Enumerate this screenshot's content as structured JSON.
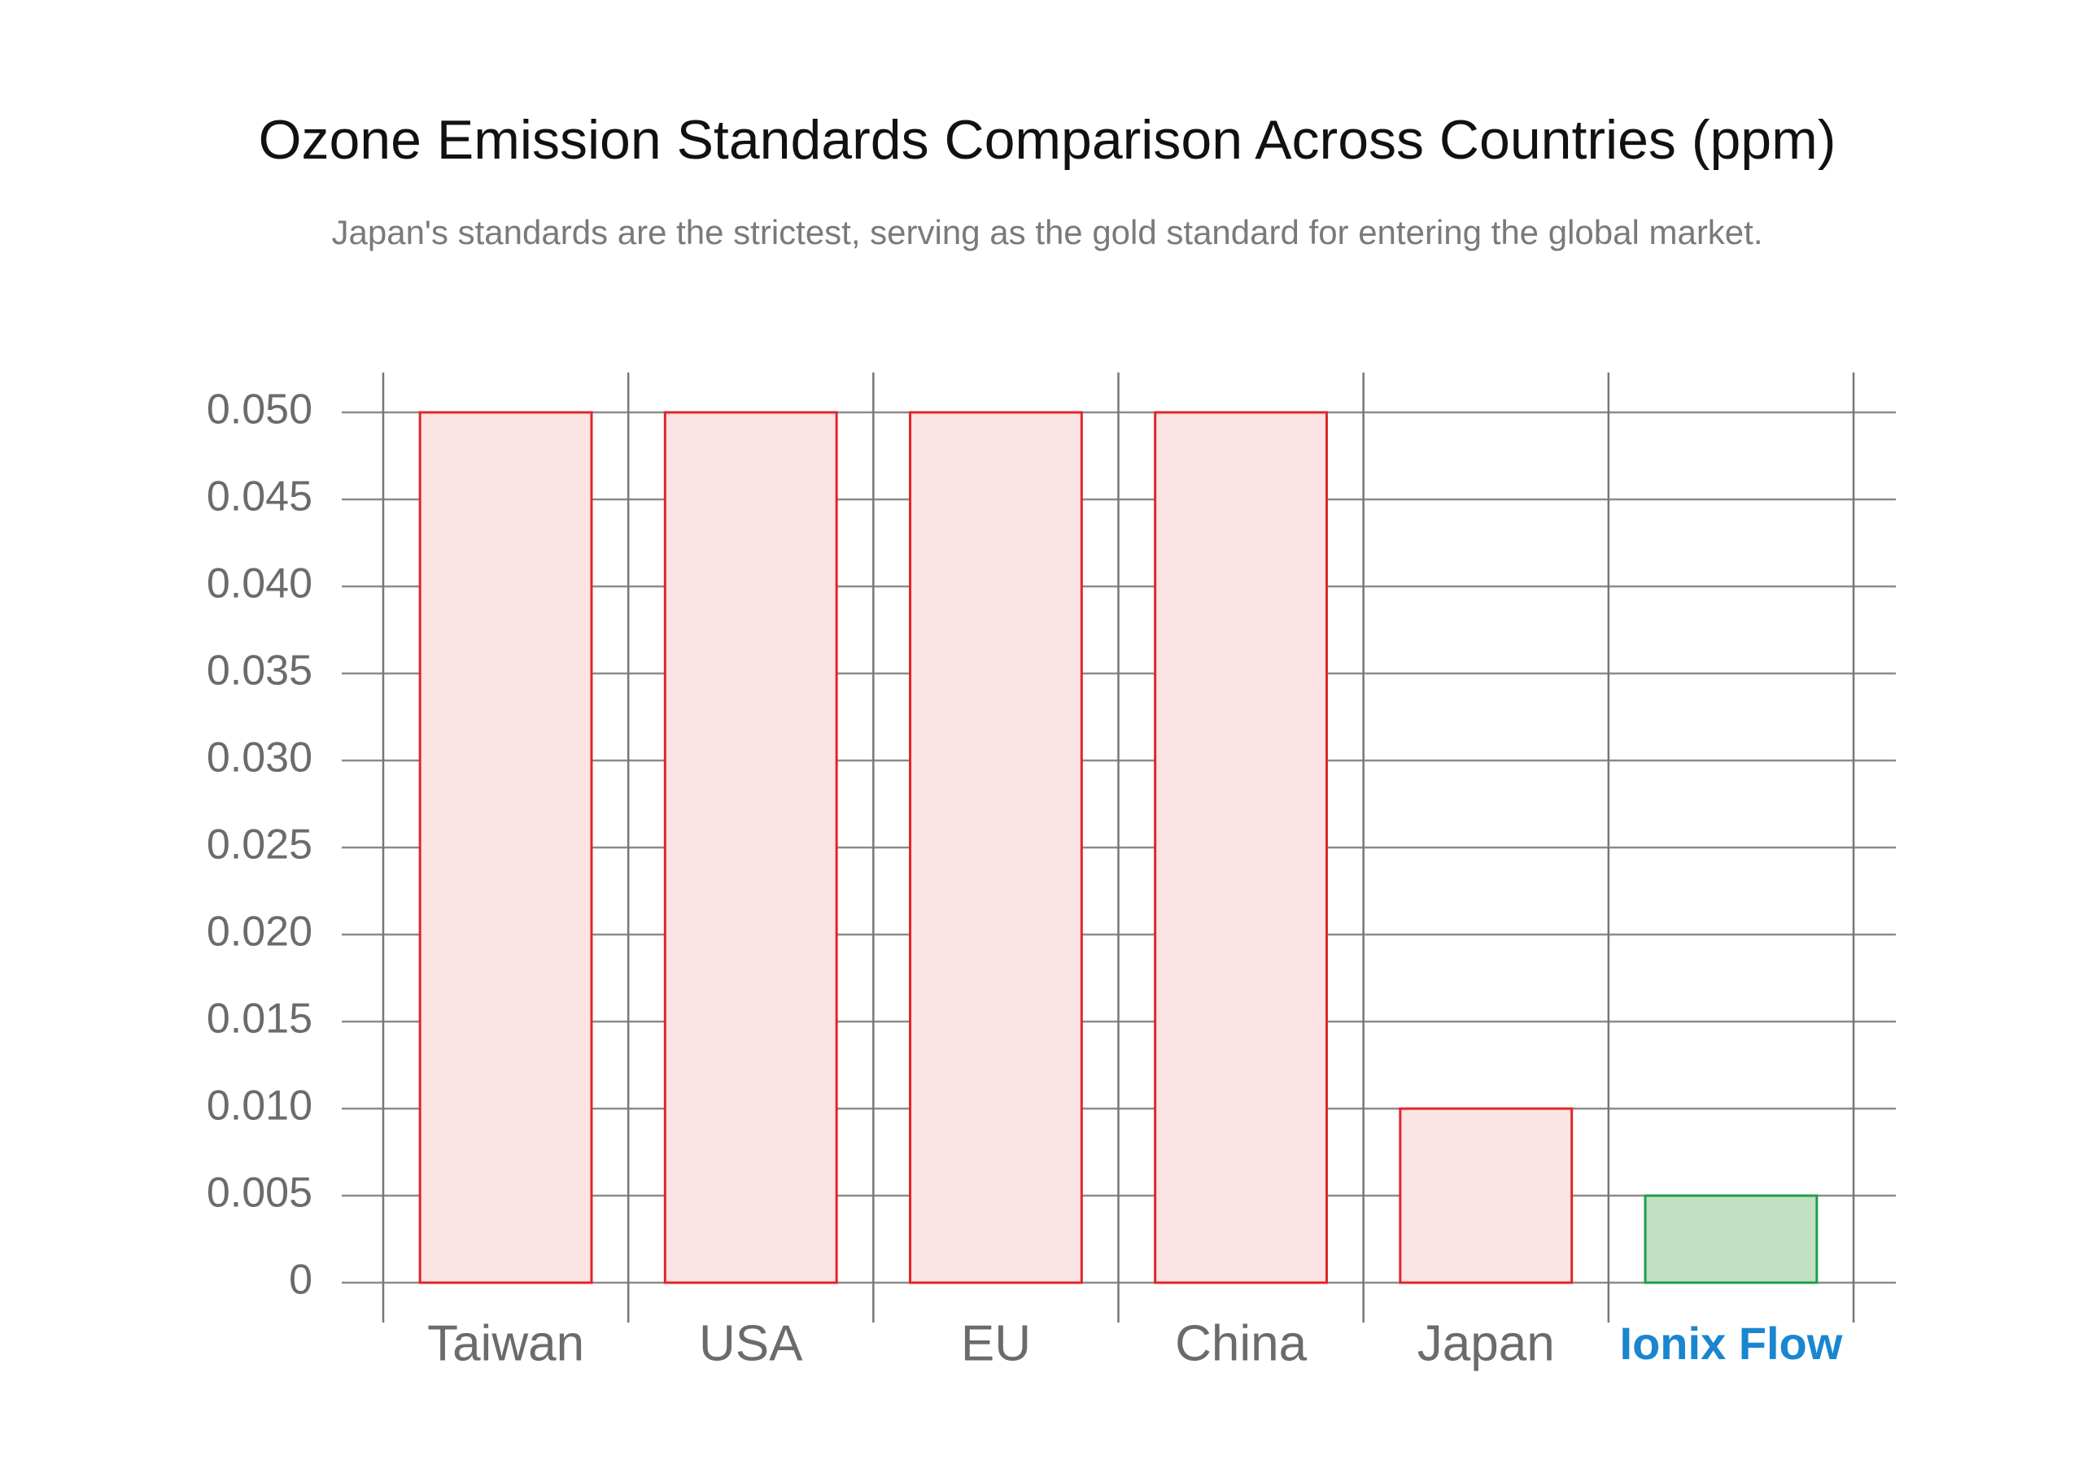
{
  "chart_data": {
    "type": "bar",
    "title": "Ozone Emission Standards Comparison Across Countries (ppm)",
    "subtitle": "Japan's standards are the strictest, serving as the gold standard for entering the global market.",
    "categories": [
      "Taiwan",
      "USA",
      "EU",
      "China",
      "Japan",
      "Ionix Flow"
    ],
    "values": [
      0.05,
      0.05,
      0.05,
      0.05,
      0.01,
      0.005
    ],
    "colors": [
      "#fbe4e4",
      "#fbe4e4",
      "#fbe4e4",
      "#fbe4e4",
      "#fbe4e4",
      "#c2e0c2"
    ],
    "edge_colors": [
      "#e0262a",
      "#e0262a",
      "#e0262a",
      "#e0262a",
      "#e0262a",
      "#1f9e4c"
    ],
    "label_colors": [
      "#6b6b6b",
      "#6b6b6b",
      "#6b6b6b",
      "#6b6b6b",
      "#6b6b6b",
      "#1b86d0"
    ],
    "ylim": [
      0,
      0.05
    ],
    "yticks": [
      0,
      {
        "value": 0.005,
        "label": "0.005"
      },
      {
        "value": 0.01,
        "label": "0.010"
      },
      {
        "value": 0.015,
        "label": "0.015"
      },
      {
        "value": 0.02,
        "label": "0.020"
      },
      {
        "value": 0.025,
        "label": "0.025"
      },
      {
        "value": 0.03,
        "label": "0.030"
      },
      {
        "value": 0.035,
        "label": "0.035"
      },
      {
        "value": 0.04,
        "label": "0.040"
      },
      {
        "value": 0.045,
        "label": "0.045"
      },
      {
        "value": 0.05,
        "label": "0.050"
      }
    ],
    "grid": true
  }
}
